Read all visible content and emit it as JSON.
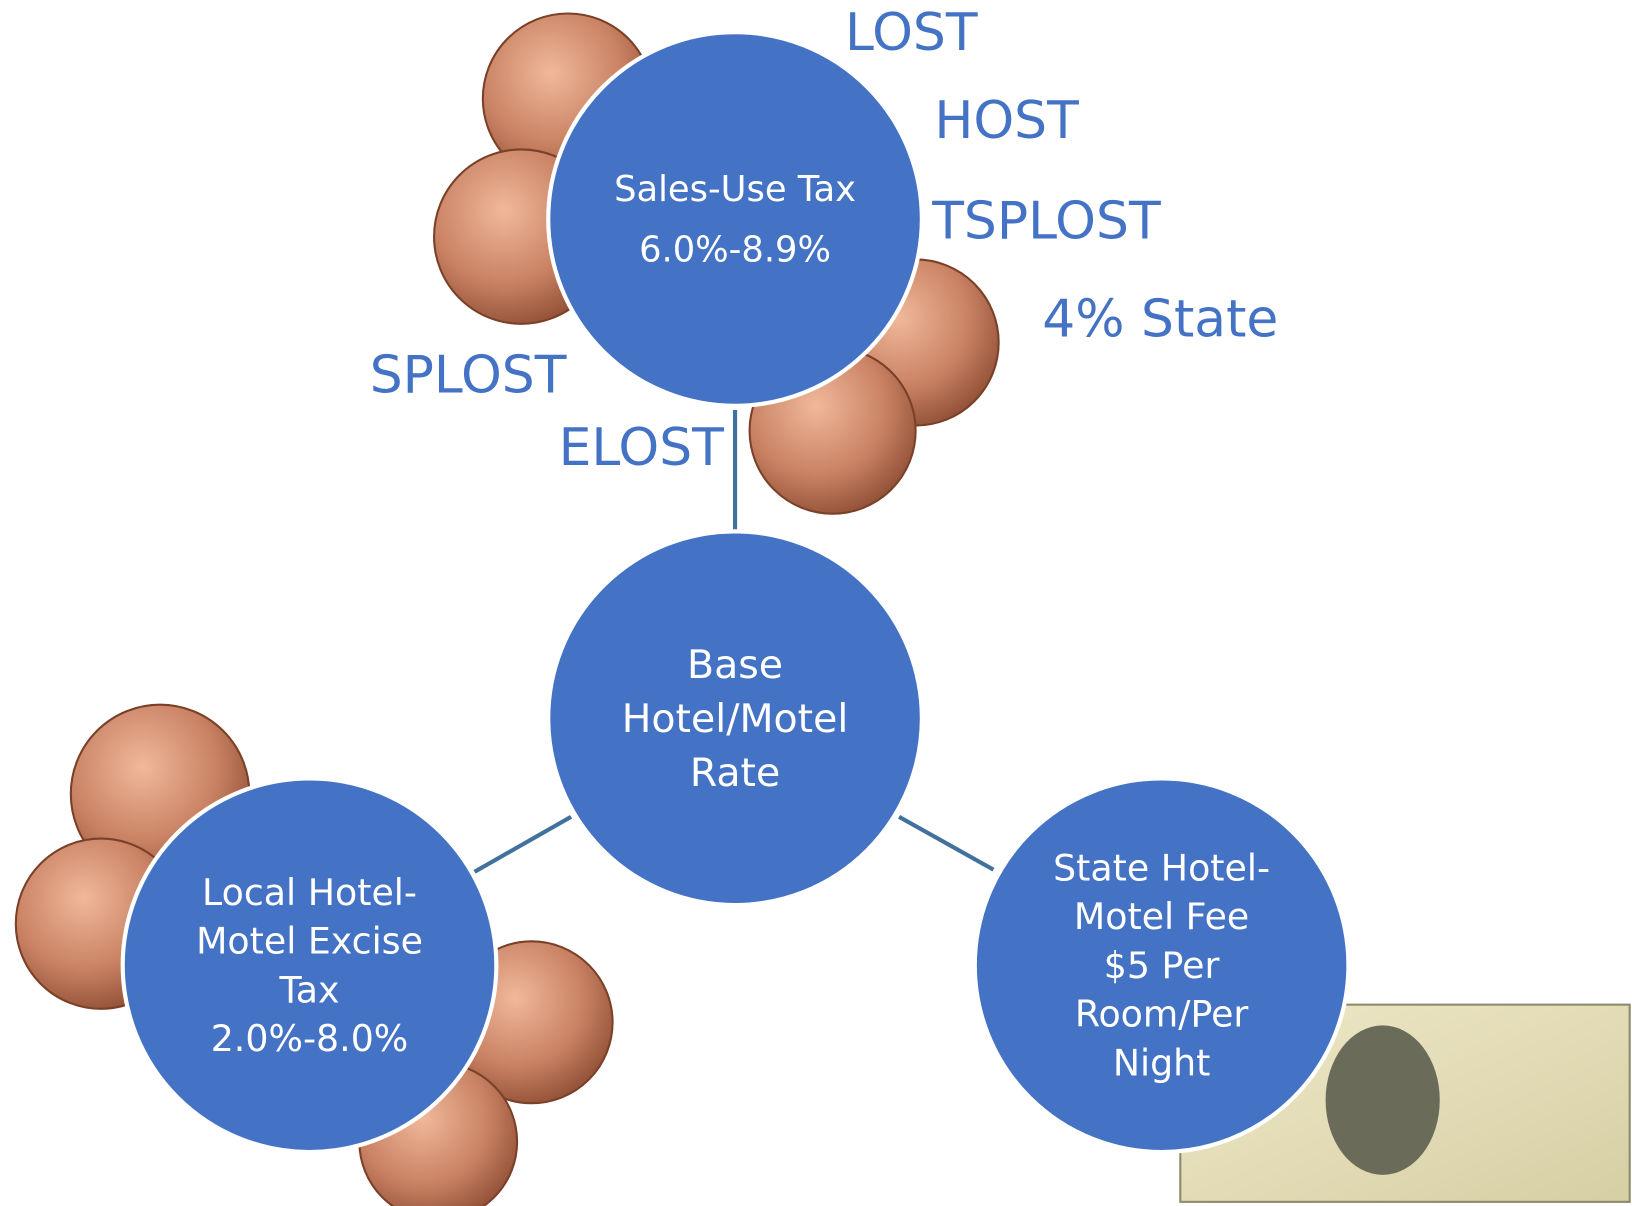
{
  "nodes": [
    {
      "lines": [
        "Base",
        "Hotel/Motel",
        "Rate"
      ]
    },
    {
      "lines": [
        "Sales-Use Tax",
        "6.0%-8.9%"
      ]
    },
    {
      "lines": [
        "Local Hotel-",
        "Motel Excise",
        "Tax",
        "2.0%-8.0%"
      ]
    },
    {
      "lines": [
        "State Hotel-",
        "Motel Fee",
        "$5 Per",
        "Room/Per",
        "Night"
      ]
    }
  ],
  "labels": [
    "LOST",
    "HOST",
    "TSPLOST",
    "4% State",
    "SPLOST",
    "ELOST"
  ]
}
